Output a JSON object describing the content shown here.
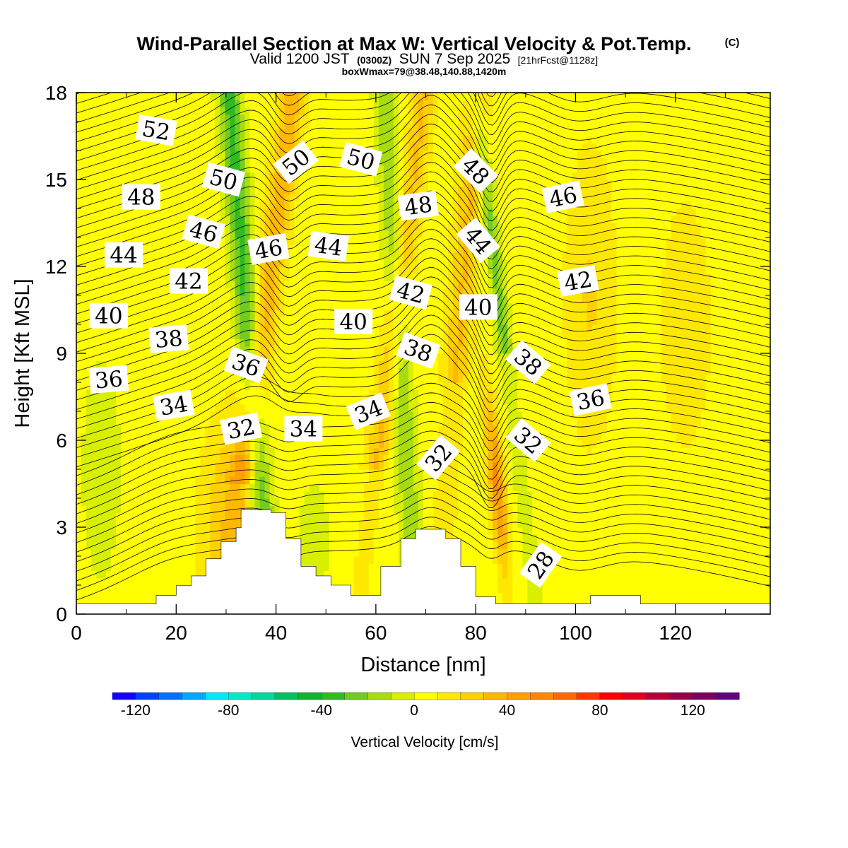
{
  "chart_data": {
    "type": "heatmap",
    "title": "Wind-Parallel Section at Max W: Vertical Velocity & Pot.Temp.",
    "title_mark": "(C)",
    "subtitle_parts": [
      "Valid 1200 JST",
      "(0300Z)",
      "SUN 7 Sep 2025",
      "[21hrFcst@1128z]"
    ],
    "subtitle2": "boxWmax=79@38.48,140.88,1420m",
    "xlabel": "Distance [nm]",
    "ylabel": "Height [Kft MSL]",
    "xlim": [
      0,
      139
    ],
    "ylim": [
      0,
      18
    ],
    "x_ticks": [
      0,
      20,
      40,
      60,
      80,
      100,
      120
    ],
    "y_ticks": [
      0,
      3,
      6,
      9,
      12,
      15,
      18
    ],
    "colorbar": {
      "label": "Vertical Velocity [cm/s]",
      "range": [
        -130,
        140
      ],
      "step": 10,
      "tick_values": [
        -120,
        -80,
        -40,
        0,
        40,
        80,
        120
      ],
      "colors": [
        "#1400ff",
        "#0040ff",
        "#0070ff",
        "#00a8ff",
        "#00e8ff",
        "#00e8c8",
        "#00d89c",
        "#00c060",
        "#10b430",
        "#30bc20",
        "#70cc20",
        "#a8dc10",
        "#d8f000",
        "#ffff00",
        "#ffe800",
        "#ffd000",
        "#ffb800",
        "#ffa000",
        "#ff8800",
        "#ff6800",
        "#ff3800",
        "#ff0000",
        "#e00020",
        "#b80038",
        "#980048",
        "#7c0060",
        "#600080"
      ]
    },
    "contour_field": "Potential Temperature",
    "contour_labels": [
      {
        "text": "52",
        "x": 16,
        "y": 16.7,
        "angle": 10
      },
      {
        "text": "50",
        "x": 44,
        "y": 15.6,
        "angle": -38
      },
      {
        "text": "50",
        "x": 57,
        "y": 15.7,
        "angle": 15
      },
      {
        "text": "50",
        "x": 29.5,
        "y": 15.0,
        "angle": 15
      },
      {
        "text": "48",
        "x": 13,
        "y": 14.4,
        "angle": 0
      },
      {
        "text": "48",
        "x": 80,
        "y": 15.3,
        "angle": 45
      },
      {
        "text": "48",
        "x": 68.5,
        "y": 14.1,
        "angle": -8
      },
      {
        "text": "46",
        "x": 97.5,
        "y": 14.4,
        "angle": -12
      },
      {
        "text": "46",
        "x": 25.5,
        "y": 13.2,
        "angle": 15
      },
      {
        "text": "46",
        "x": 38.5,
        "y": 12.6,
        "angle": -10
      },
      {
        "text": "44",
        "x": 50.5,
        "y": 12.7,
        "angle": 8
      },
      {
        "text": "44",
        "x": 80.5,
        "y": 12.9,
        "angle": 50
      },
      {
        "text": "44",
        "x": 9.5,
        "y": 12.4,
        "angle": 0
      },
      {
        "text": "42",
        "x": 22.5,
        "y": 11.5,
        "angle": 0
      },
      {
        "text": "42",
        "x": 67,
        "y": 11.1,
        "angle": 15
      },
      {
        "text": "42",
        "x": 100.5,
        "y": 11.5,
        "angle": -10
      },
      {
        "text": "40",
        "x": 80.5,
        "y": 10.6,
        "angle": 0
      },
      {
        "text": "40",
        "x": 6.5,
        "y": 10.3,
        "angle": 0
      },
      {
        "text": "40",
        "x": 55.5,
        "y": 10.1,
        "angle": 0
      },
      {
        "text": "38",
        "x": 18.5,
        "y": 9.5,
        "angle": -5
      },
      {
        "text": "38",
        "x": 68.5,
        "y": 9.1,
        "angle": 20
      },
      {
        "text": "38",
        "x": 90.5,
        "y": 8.7,
        "angle": 40
      },
      {
        "text": "36",
        "x": 34,
        "y": 8.6,
        "angle": 20
      },
      {
        "text": "36",
        "x": 6.5,
        "y": 8.1,
        "angle": -5
      },
      {
        "text": "36",
        "x": 103,
        "y": 7.4,
        "angle": -12
      },
      {
        "text": "34",
        "x": 19.5,
        "y": 7.2,
        "angle": -10
      },
      {
        "text": "34",
        "x": 58.5,
        "y": 7.0,
        "angle": -22
      },
      {
        "text": "34",
        "x": 45.5,
        "y": 6.4,
        "angle": 0
      },
      {
        "text": "32",
        "x": 33,
        "y": 6.4,
        "angle": -12
      },
      {
        "text": "32",
        "x": 90.5,
        "y": 6.0,
        "angle": 40
      },
      {
        "text": "32",
        "x": 72.5,
        "y": 5.4,
        "angle": -50
      },
      {
        "text": "28",
        "x": 93,
        "y": 1.7,
        "angle": -55
      }
    ]
  }
}
